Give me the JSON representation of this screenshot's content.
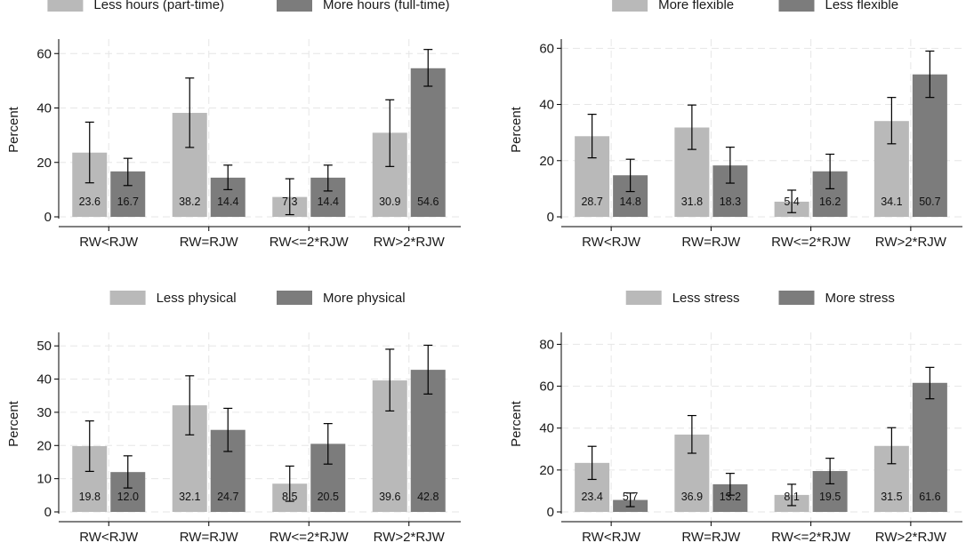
{
  "colors": {
    "light": "#b9b9b9",
    "dark": "#7c7c7c",
    "grid": "#e6e6e6",
    "axis": "#000000",
    "text": "#1a1a1a"
  },
  "chart_data": [
    {
      "type": "bar",
      "categories": [
        "RW<RJW",
        "RW=RJW",
        "RW<=2*RJW",
        "RW>2*RJW"
      ],
      "ylabel": "Percent",
      "ylim": [
        0,
        64
      ],
      "yticks": [
        0,
        20,
        40,
        60
      ],
      "legend": "top",
      "grid": true,
      "series": [
        {
          "name": "Less hours (part-time)",
          "values": [
            23.6,
            38.2,
            7.3,
            30.9
          ],
          "ci_low": [
            12.5,
            25.5,
            0.8,
            18.5
          ],
          "ci_high": [
            34.8,
            51.0,
            14.0,
            43.0
          ]
        },
        {
          "name": "More hours (full-time)",
          "values": [
            16.7,
            14.4,
            14.4,
            54.6
          ],
          "ci_low": [
            11.5,
            10.0,
            9.5,
            48.0
          ],
          "ci_high": [
            21.5,
            19.0,
            19.0,
            61.5
          ]
        }
      ]
    },
    {
      "type": "bar",
      "categories": [
        "RW<RJW",
        "RW=RJW",
        "RW<=2*RJW",
        "RW>2*RJW"
      ],
      "ylabel": "Percent",
      "ylim": [
        0,
        62
      ],
      "yticks": [
        0,
        20,
        40,
        60
      ],
      "legend": "top",
      "grid": true,
      "series": [
        {
          "name": "More flexible",
          "values": [
            28.7,
            31.8,
            5.4,
            34.1
          ],
          "ci_low": [
            21.0,
            24.0,
            1.5,
            26.0
          ],
          "ci_high": [
            36.5,
            39.8,
            9.5,
            42.5
          ]
        },
        {
          "name": "Less flexible",
          "values": [
            14.8,
            18.3,
            16.2,
            50.7
          ],
          "ci_low": [
            9.0,
            12.0,
            10.0,
            42.5
          ],
          "ci_high": [
            20.5,
            24.8,
            22.3,
            59.0
          ]
        }
      ]
    },
    {
      "type": "bar",
      "categories": [
        "RW<RJW",
        "RW=RJW",
        "RW<=2*RJW",
        "RW>2*RJW"
      ],
      "ylabel": "Percent",
      "ylim": [
        0,
        53
      ],
      "yticks": [
        0,
        10,
        20,
        30,
        40,
        50
      ],
      "legend": "top",
      "grid": true,
      "series": [
        {
          "name": "Less physical",
          "values": [
            19.8,
            32.1,
            8.5,
            39.6
          ],
          "ci_low": [
            12.2,
            23.2,
            3.2,
            30.4
          ],
          "ci_high": [
            27.4,
            41.0,
            13.8,
            49.0
          ]
        },
        {
          "name": "More physical",
          "values": [
            12.0,
            24.7,
            20.5,
            42.8
          ],
          "ci_low": [
            7.2,
            18.2,
            14.4,
            35.5
          ],
          "ci_high": [
            16.9,
            31.2,
            26.6,
            50.2
          ]
        }
      ]
    },
    {
      "type": "bar",
      "categories": [
        "RW<RJW",
        "RW=RJW",
        "RW<=2*RJW",
        "RW>2*RJW"
      ],
      "ylabel": "Percent",
      "ylim": [
        0,
        84
      ],
      "yticks": [
        0,
        20,
        40,
        60,
        80
      ],
      "legend": "top",
      "grid": true,
      "series": [
        {
          "name": "Less stress",
          "values": [
            23.4,
            36.9,
            8.1,
            31.5
          ],
          "ci_low": [
            15.5,
            28.0,
            3.0,
            23.0
          ],
          "ci_high": [
            31.3,
            46.0,
            13.2,
            40.2
          ]
        },
        {
          "name": "More stress",
          "values": [
            5.7,
            13.2,
            19.5,
            61.6
          ],
          "ci_low": [
            2.5,
            8.0,
            13.4,
            54.0
          ],
          "ci_high": [
            9.0,
            18.4,
            25.6,
            69.0
          ]
        }
      ]
    }
  ]
}
